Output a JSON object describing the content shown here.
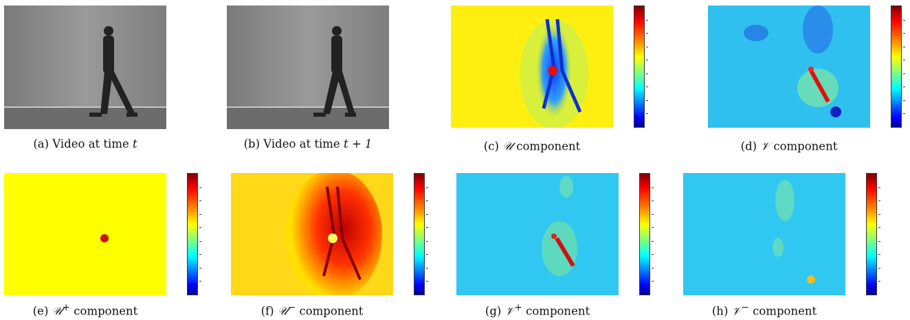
{
  "captions": {
    "a": {
      "prefix": "(a) Video at time ",
      "var": "t"
    },
    "b": {
      "prefix": "(b) Video at time ",
      "var": "t + 1"
    },
    "c": {
      "prefix": "(c) ",
      "sym": "𝒰",
      "sup": "",
      "suffix": " component"
    },
    "d": {
      "prefix": "(d) ",
      "sym": "𝒱",
      "sup": "",
      "suffix": " component"
    },
    "e": {
      "prefix": "(e) ",
      "sym": "𝒰",
      "sup": "+",
      "suffix": " component"
    },
    "f": {
      "prefix": "(f) ",
      "sym": "𝒰",
      "sup": "−",
      "suffix": " component"
    },
    "g": {
      "prefix": "(g) ",
      "sym": "𝒱",
      "sup": "+",
      "suffix": " component"
    },
    "h": {
      "prefix": "(h) ",
      "sym": "𝒱",
      "sup": "−",
      "suffix": " component"
    }
  },
  "colors": {
    "yellow": "#ffff00",
    "cyan": "#22c8f0",
    "red": "#e01010",
    "blue": "#1030e0",
    "gray_wall": "#8a8a8a",
    "gray_floor": "#6a6a6a"
  }
}
